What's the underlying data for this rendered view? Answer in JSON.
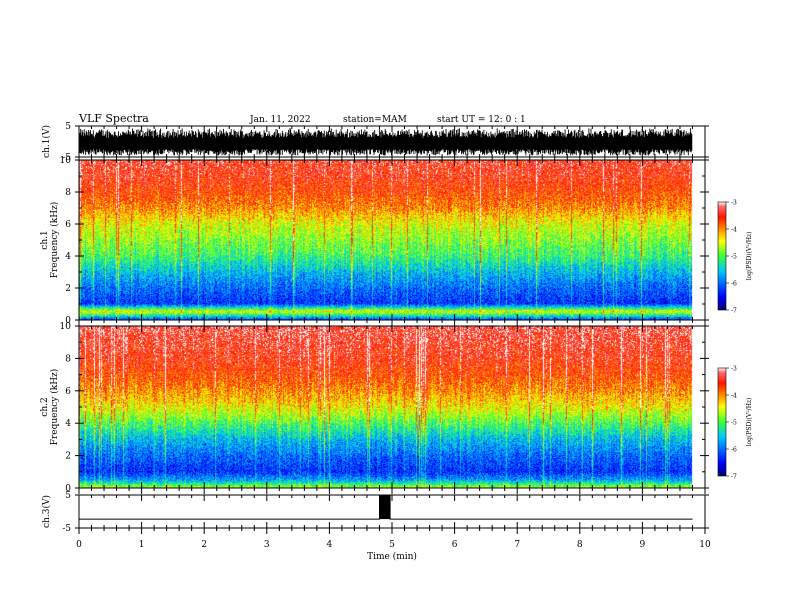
{
  "header": {
    "title": "VLF Spectra",
    "date": "Jan. 11, 2022",
    "station": "station=MAM",
    "start": "start UT =  12: 0 : 1"
  },
  "chart_data": [
    {
      "type": "line",
      "panel": "ch1-waveform",
      "ylabel": "ch.1(V)",
      "ylim": [
        -5,
        5
      ],
      "y_ticks": [
        "5",
        "-5"
      ],
      "x": [
        0,
        9.8
      ],
      "series": [
        {
          "values_range": [
            -4.5,
            4.5
          ]
        }
      ],
      "note_dense": true
    },
    {
      "type": "heatmap",
      "panel": "ch1-spectrogram",
      "ylabel_line1": "ch.1",
      "ylabel_line2": "Frequency (kHz)",
      "ylim": [
        0,
        10
      ],
      "y_ticks": [
        "0",
        "2",
        "4",
        "6",
        "8",
        "10"
      ],
      "xlim": [
        0,
        10
      ],
      "data_extent_x": [
        0,
        9.8
      ],
      "colorbar": {
        "label": "log(PSD)(V²/Hz)",
        "range": [
          -7,
          -3
        ],
        "ticks": [
          "-3",
          "-4",
          "-5",
          "-6",
          "-7"
        ]
      },
      "frequency_profile": [
        {
          "freq": 0.0,
          "value": -6.1
        },
        {
          "freq": 0.5,
          "value": -4.5
        },
        {
          "freq": 1.0,
          "value": -6.3
        },
        {
          "freq": 2.0,
          "value": -6.0
        },
        {
          "freq": 3.0,
          "value": -5.6
        },
        {
          "freq": 4.0,
          "value": -5.1
        },
        {
          "freq": 5.0,
          "value": -4.8
        },
        {
          "freq": 6.0,
          "value": -4.5
        },
        {
          "freq": 7.0,
          "value": -4.0
        },
        {
          "freq": 8.0,
          "value": -3.7
        },
        {
          "freq": 9.0,
          "value": -3.5
        },
        {
          "freq": 10.0,
          "value": -3.4
        }
      ]
    },
    {
      "type": "heatmap",
      "panel": "ch2-spectrogram",
      "ylabel_line1": "ch.2",
      "ylabel_line2": "Frequency (kHz)",
      "ylim": [
        0,
        10
      ],
      "y_ticks": [
        "0",
        "2",
        "4",
        "6",
        "8",
        "10"
      ],
      "xlim": [
        0,
        10
      ],
      "data_extent_x": [
        0,
        9.8
      ],
      "colorbar": {
        "label": "log(PSD)(V²/Hz)",
        "range": [
          -7,
          -3
        ],
        "ticks": [
          "-3",
          "-4",
          "-5",
          "-6",
          "-7"
        ]
      },
      "frequency_profile": [
        {
          "freq": 0.0,
          "value": -4.7
        },
        {
          "freq": 0.5,
          "value": -5.8
        },
        {
          "freq": 1.0,
          "value": -6.3
        },
        {
          "freq": 2.0,
          "value": -6.0
        },
        {
          "freq": 3.0,
          "value": -5.6
        },
        {
          "freq": 4.0,
          "value": -5.0
        },
        {
          "freq": 5.0,
          "value": -4.4
        },
        {
          "freq": 6.0,
          "value": -4.0
        },
        {
          "freq": 7.0,
          "value": -3.7
        },
        {
          "freq": 8.0,
          "value": -3.5
        },
        {
          "freq": 9.0,
          "value": -3.4
        },
        {
          "freq": 10.0,
          "value": -3.3
        }
      ]
    },
    {
      "type": "line",
      "panel": "ch3-waveform",
      "ylabel": "ch.3(V)",
      "ylim": [
        -5,
        5
      ],
      "y_ticks": [
        "5",
        "-5"
      ],
      "xlim": [
        0,
        10
      ],
      "xlabel": "Time (min)",
      "x_ticks": [
        "0",
        "1",
        "2",
        "3",
        "4",
        "5",
        "6",
        "7",
        "8",
        "9",
        "10"
      ],
      "series": [
        {
          "points": [
            {
              "x": 0.0,
              "y": -2.3
            },
            {
              "x": 4.8,
              "y": -2.3
            },
            {
              "x": 4.8,
              "y": 5.0
            },
            {
              "x": 4.97,
              "y": 5.0
            },
            {
              "x": 4.97,
              "y": -2.3
            },
            {
              "x": 9.8,
              "y": -2.3
            }
          ]
        }
      ]
    }
  ]
}
